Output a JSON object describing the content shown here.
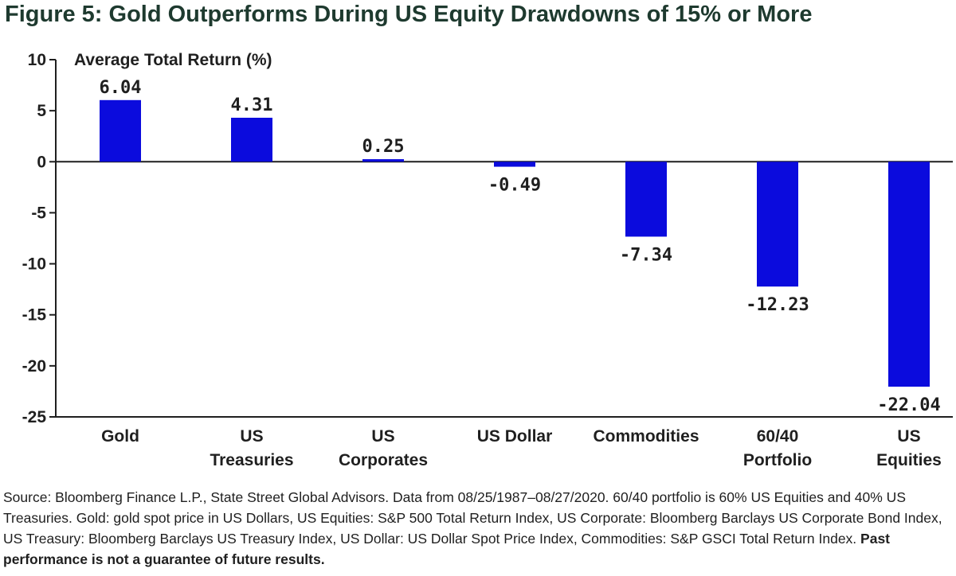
{
  "title": "Figure 5: Gold Outperforms During US Equity Drawdowns of 15% or More",
  "footnote": "Source: Bloomberg Finance L.P., State Street Global Advisors. Data from 08/25/1987–08/27/2020. 60/40 portfolio is 60% US Equities and 40% US Treasuries. Gold: gold spot price in US Dollars, US Equities: S&P 500 Total Return Index, US Corporate: Bloomberg Barclays US Corporate Bond Index, US Treasury: Bloomberg Barclays US Treasury Index, US Dollar: US Dollar Spot Price Index, Commodities: S&P GSCI Total Return Index.",
  "footnote_bold": "Past performance is not a guarantee of future results.",
  "chart_data": {
    "type": "bar",
    "ylabel": "Average Total Return (%)",
    "categories": [
      [
        "Gold"
      ],
      [
        "US",
        "Treasuries"
      ],
      [
        "US",
        "Corporates"
      ],
      [
        "US Dollar"
      ],
      [
        "Commodities"
      ],
      [
        "60/40",
        "Portfolio"
      ],
      [
        "US",
        "Equities"
      ]
    ],
    "values": [
      6.04,
      4.31,
      0.25,
      -0.49,
      -7.34,
      -12.23,
      -22.04
    ],
    "value_labels": [
      "6.04",
      "4.31",
      "0.25",
      "-0.49",
      "-7.34",
      "-12.23",
      "-22.04"
    ],
    "ylim": [
      -25,
      10
    ],
    "yticks": [
      10,
      5,
      0,
      -5,
      -10,
      -15,
      -20,
      -25
    ],
    "bar_color": "#0b0bdd",
    "grid": false
  }
}
